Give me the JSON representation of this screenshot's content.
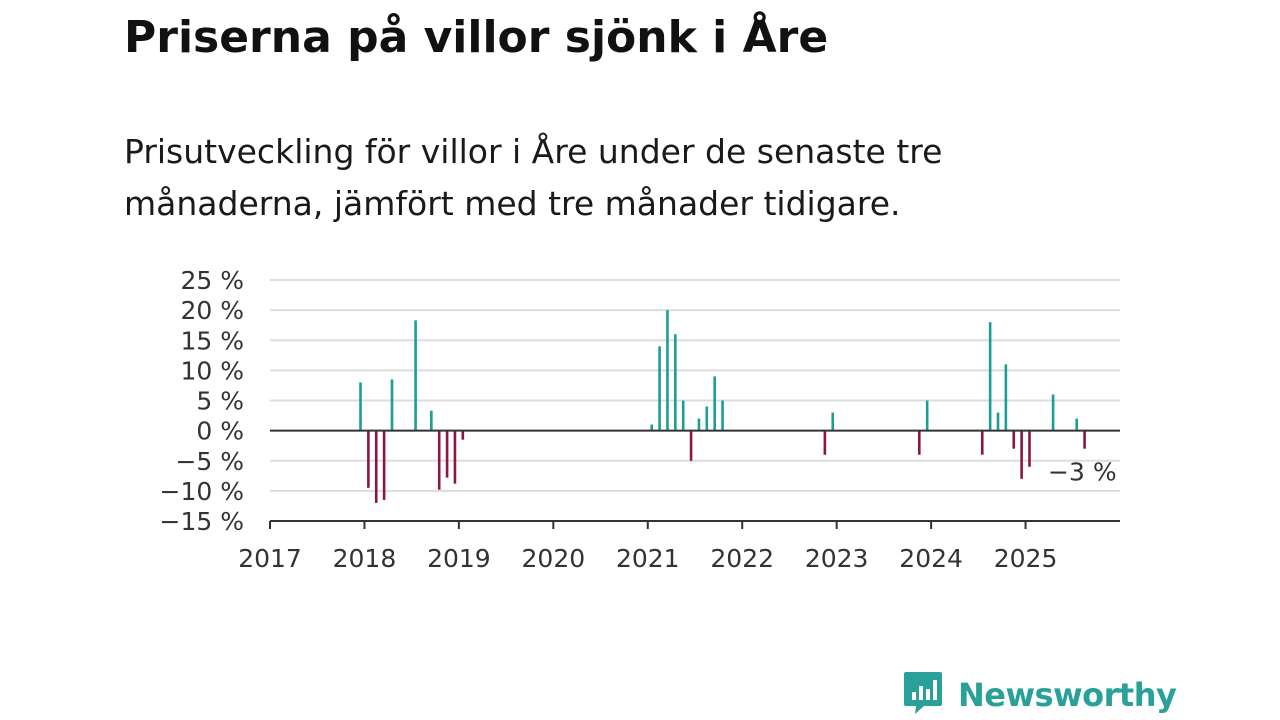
{
  "title": "Priserna på villor sjönk i Åre",
  "subtitle": "Prisutveckling för villor i Åre under de senaste tre månaderna, jämfört med tre månader tidigare.",
  "brand": {
    "name": "Newsworthy",
    "icon": "newsworthy-logo-icon",
    "color": "#2aa198"
  },
  "colors": {
    "positive": "#1a9e96",
    "negative": "#8c1446",
    "grid": "#dddddd",
    "axis": "#333333"
  },
  "chart_data": {
    "type": "bar",
    "x_unit": "month",
    "xlim": [
      "2017-01",
      "2025-12"
    ],
    "ylim": [
      -15,
      25
    ],
    "y_ticks": [
      25,
      20,
      15,
      10,
      5,
      0,
      -5,
      -10,
      -15
    ],
    "y_tick_labels": [
      "25 %",
      "20 %",
      "15 %",
      "10 %",
      "5 %",
      "0 %",
      "−5 %",
      "−10 %",
      "−15 %"
    ],
    "x_ticks": [
      "2017",
      "2018",
      "2019",
      "2020",
      "2021",
      "2022",
      "2023",
      "2024",
      "2025"
    ],
    "grid": true,
    "annotation": {
      "x": "2025-08",
      "text": "−3 %"
    },
    "points": [
      {
        "x": "2017-12",
        "y": 8
      },
      {
        "x": "2018-01",
        "y": -9.5
      },
      {
        "x": "2018-02",
        "y": -12
      },
      {
        "x": "2018-03",
        "y": -11.5
      },
      {
        "x": "2018-04",
        "y": 8.5
      },
      {
        "x": "2018-07",
        "y": 18.3
      },
      {
        "x": "2018-09",
        "y": 3.3
      },
      {
        "x": "2018-10",
        "y": -9.8
      },
      {
        "x": "2018-11",
        "y": -7.8
      },
      {
        "x": "2018-12",
        "y": -8.8
      },
      {
        "x": "2019-01",
        "y": -1.5
      },
      {
        "x": "2021-01",
        "y": 1
      },
      {
        "x": "2021-02",
        "y": 14
      },
      {
        "x": "2021-03",
        "y": 20
      },
      {
        "x": "2021-04",
        "y": 16
      },
      {
        "x": "2021-05",
        "y": 5
      },
      {
        "x": "2021-06",
        "y": -5
      },
      {
        "x": "2021-07",
        "y": 2
      },
      {
        "x": "2021-08",
        "y": 4
      },
      {
        "x": "2021-09",
        "y": 9
      },
      {
        "x": "2021-10",
        "y": 5
      },
      {
        "x": "2022-11",
        "y": -4
      },
      {
        "x": "2022-12",
        "y": 3
      },
      {
        "x": "2023-11",
        "y": -4
      },
      {
        "x": "2023-12",
        "y": 5
      },
      {
        "x": "2024-07",
        "y": -4
      },
      {
        "x": "2024-08",
        "y": 18
      },
      {
        "x": "2024-09",
        "y": 3
      },
      {
        "x": "2024-10",
        "y": 11
      },
      {
        "x": "2024-11",
        "y": -3
      },
      {
        "x": "2024-12",
        "y": -8
      },
      {
        "x": "2025-01",
        "y": -6
      },
      {
        "x": "2025-04",
        "y": 6
      },
      {
        "x": "2025-07",
        "y": 2
      },
      {
        "x": "2025-08",
        "y": -3
      }
    ]
  }
}
